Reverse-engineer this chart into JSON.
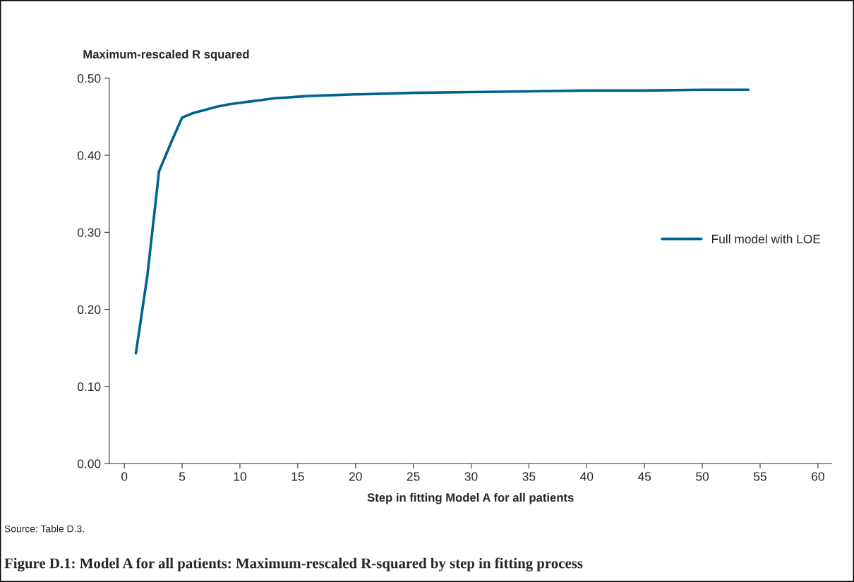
{
  "chart_data": {
    "type": "line",
    "title": "Figure D.1: Model A for all patients: Maximum-rescaled R-squared by step in fitting process",
    "ylabel": "Maximum-rescaled R squared",
    "xlabel": "Step in fitting Model A for all patients",
    "annotations": [
      "Source: Table D.3."
    ],
    "series": [
      {
        "name": "Full model with LOE",
        "color": "#00638f",
        "x": [
          1,
          2,
          3,
          4,
          5,
          6,
          7,
          8,
          9,
          10,
          11,
          12,
          13,
          14,
          15,
          16,
          18,
          20,
          25,
          30,
          35,
          40,
          45,
          50,
          54
        ],
        "values": [
          0.143,
          0.245,
          0.379,
          0.415,
          0.449,
          0.455,
          0.459,
          0.463,
          0.466,
          0.468,
          0.47,
          0.472,
          0.474,
          0.475,
          0.476,
          0.477,
          0.478,
          0.479,
          0.481,
          0.482,
          0.483,
          0.484,
          0.484,
          0.485,
          0.485
        ]
      }
    ],
    "xlim": [
      -1.3,
      61.2
    ],
    "xticks": [
      0,
      5,
      10,
      15,
      20,
      25,
      30,
      35,
      40,
      45,
      50,
      55,
      60
    ],
    "ylim": [
      0,
      0.5
    ],
    "yticks": [
      {
        "value": 0,
        "label": "0.00"
      },
      {
        "value": 0.1,
        "label": "0.10"
      },
      {
        "value": 0.2,
        "label": "0.20"
      },
      {
        "value": 0.3,
        "label": "0.30"
      },
      {
        "value": 0.4,
        "label": "0.40"
      },
      {
        "value": 0.5,
        "label": "0.50"
      }
    ],
    "grid": false,
    "legend": "right",
    "marker": "none",
    "line_style": "solid"
  }
}
